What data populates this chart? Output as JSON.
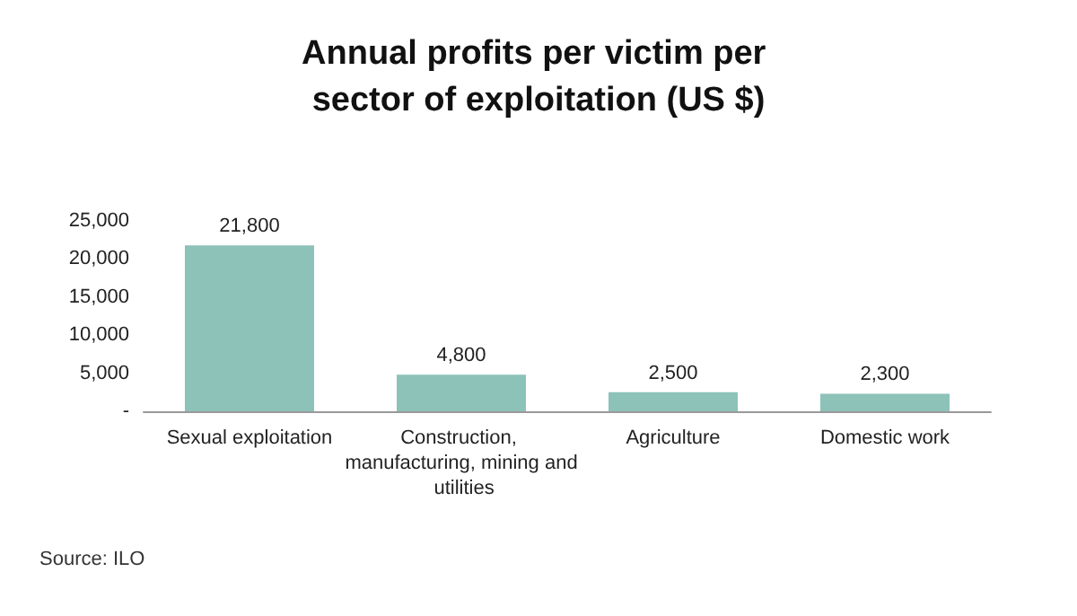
{
  "chart_data": {
    "type": "bar",
    "title": "Annual profits per victim per sector of exploitation (US $)",
    "categories": [
      "Sexual exploitation",
      "Construction, manufacturing, mining and utilities",
      "Agriculture",
      "Domestic work"
    ],
    "values": [
      21800,
      4800,
      2500,
      2300
    ],
    "value_labels": [
      "21,800",
      "4,800",
      "2,500",
      "2,300"
    ],
    "color": "#8cc2b8",
    "ylim": [
      0,
      25000
    ],
    "yticks": [
      {
        "value": 0,
        "label": "-"
      },
      {
        "value": 5000,
        "label": "5,000"
      },
      {
        "value": 10000,
        "label": "10,000"
      },
      {
        "value": 15000,
        "label": "15,000"
      },
      {
        "value": 20000,
        "label": "20,000"
      },
      {
        "value": 25000,
        "label": "25,000"
      }
    ],
    "grid": false,
    "annotations": [
      "Source: ILO"
    ]
  }
}
